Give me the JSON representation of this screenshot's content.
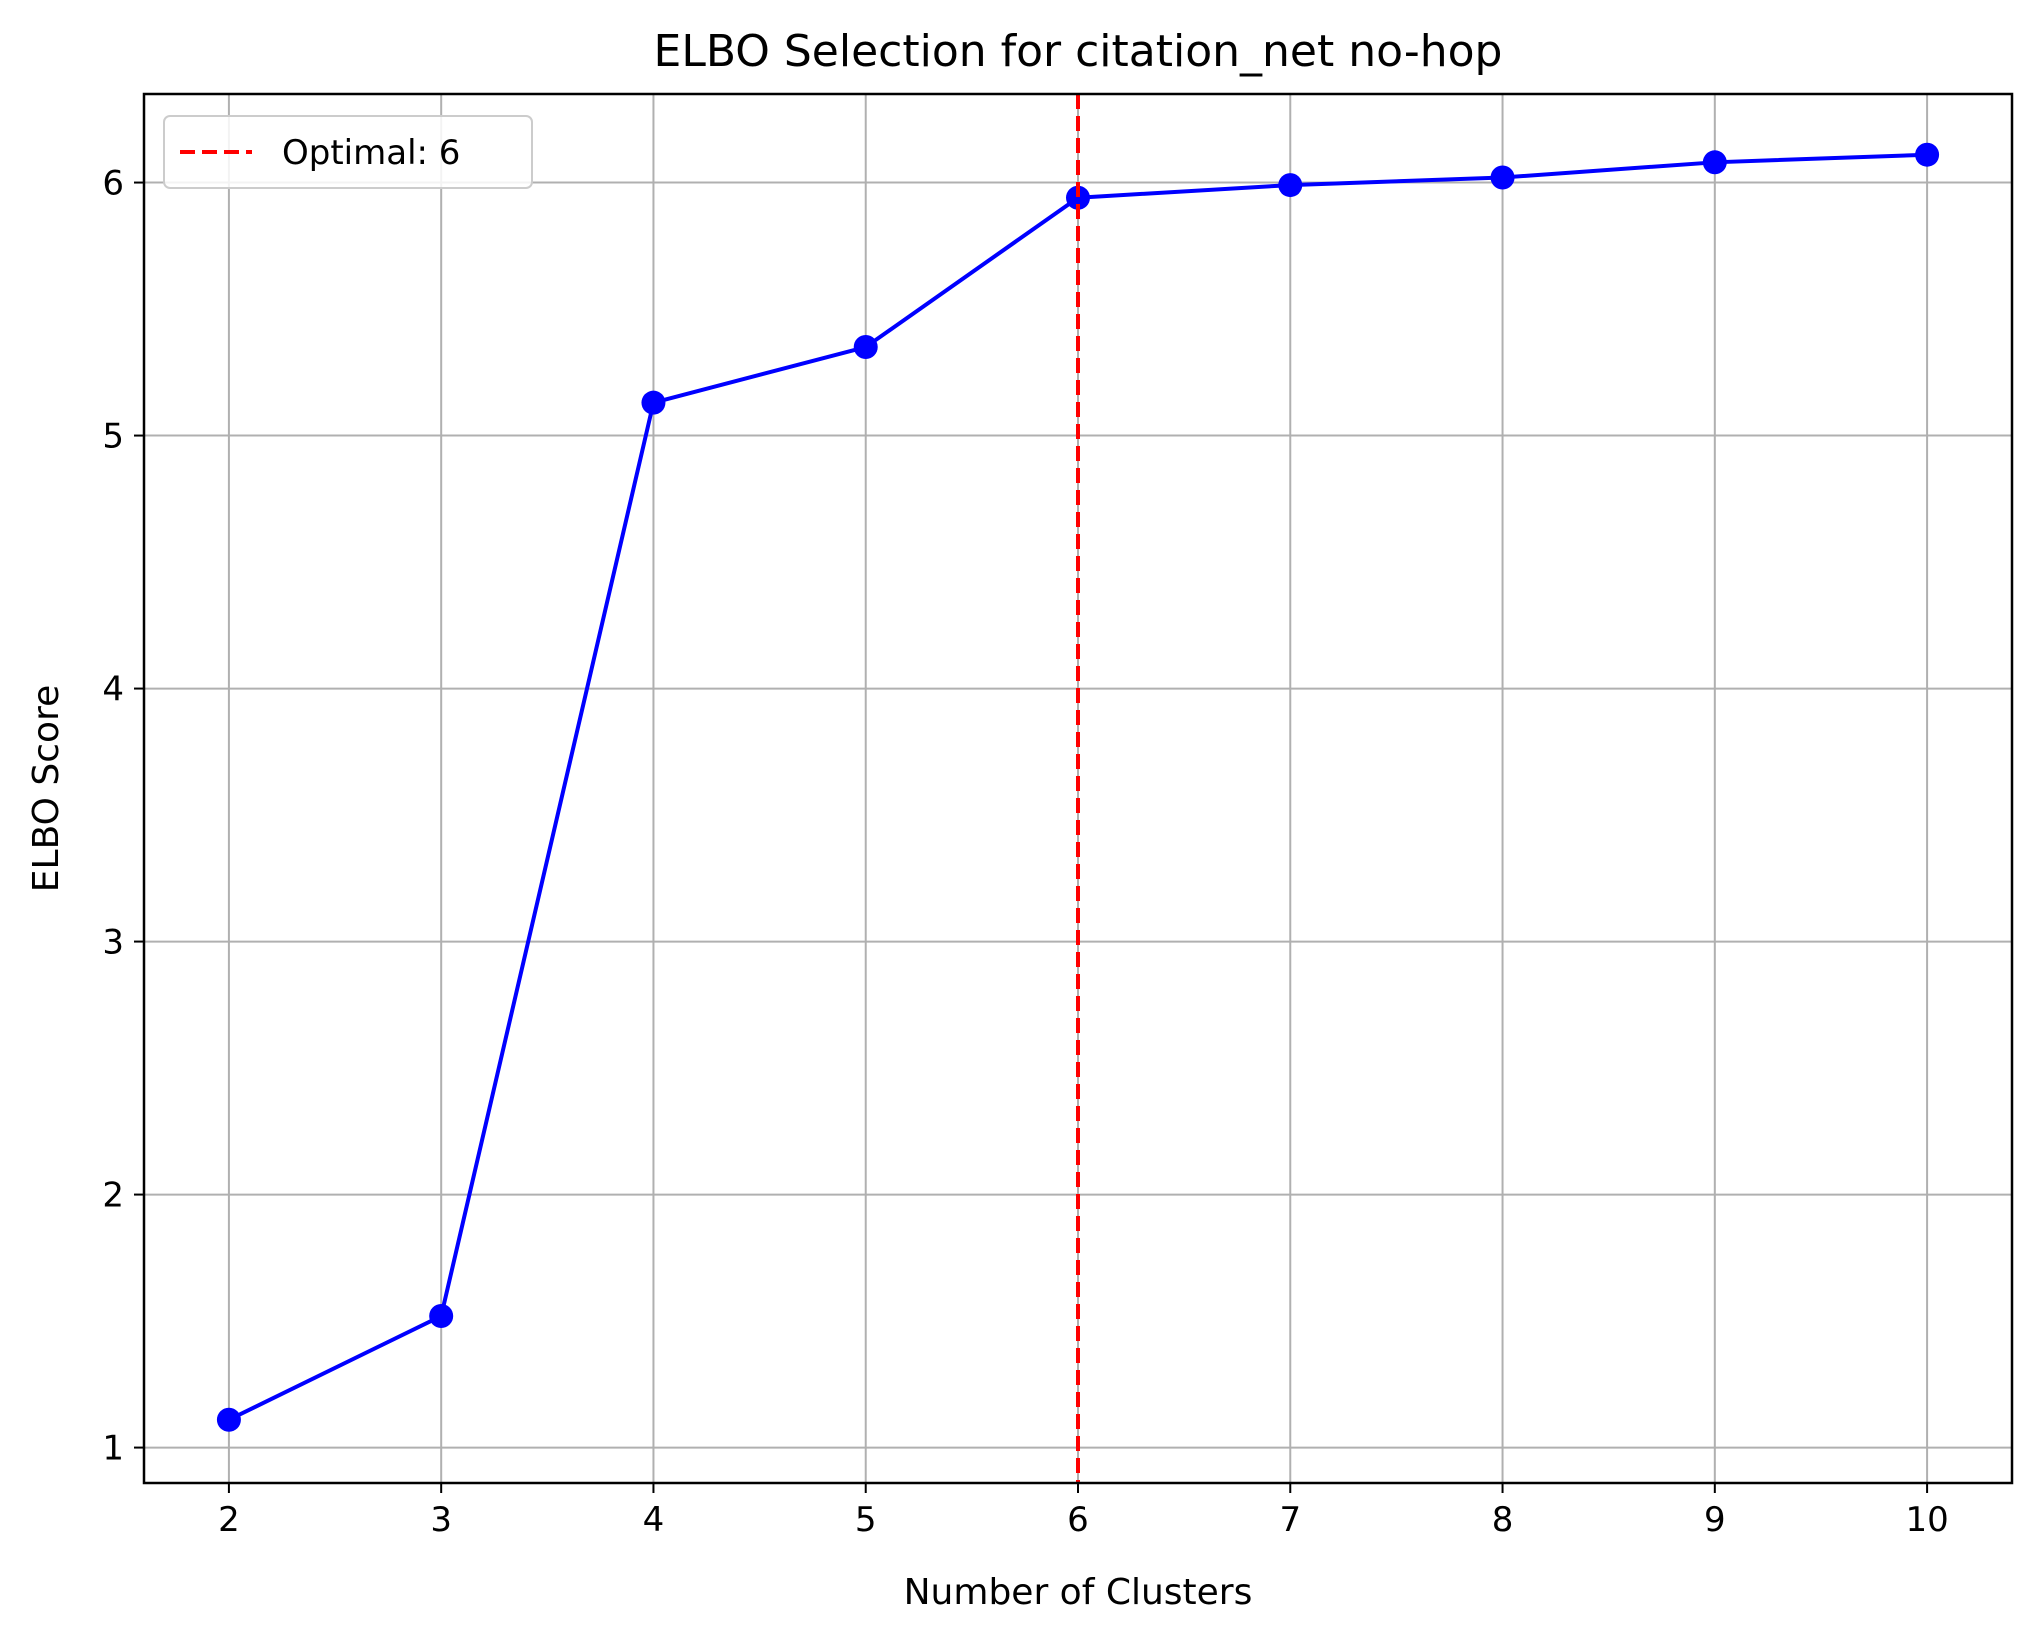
{
  "chart_data": {
    "type": "line",
    "title": "ELBO Selection for citation_net no-hop",
    "xlabel": "Number of Clusters",
    "ylabel": "ELBO Score",
    "x": [
      2,
      3,
      4,
      5,
      6,
      7,
      8,
      9,
      10
    ],
    "series": [
      {
        "values": [
          1.11,
          1.52,
          5.13,
          5.35,
          5.94,
          5.99,
          6.02,
          6.08,
          6.11
        ],
        "color": "#0000ff",
        "marker": "circle"
      }
    ],
    "xlim": [
      1.6,
      10.4
    ],
    "ylim": [
      0.86,
      6.35
    ],
    "xticks": [
      2,
      3,
      4,
      5,
      6,
      7,
      8,
      9,
      10
    ],
    "yticks": [
      1,
      2,
      3,
      4,
      5,
      6
    ],
    "vline": {
      "x": 6,
      "label": "Optimal: 6",
      "color": "#ff0000",
      "style": "dashed"
    },
    "legend": {
      "position": "top-left",
      "entries": [
        "Optimal: 6"
      ]
    },
    "grid": true
  }
}
